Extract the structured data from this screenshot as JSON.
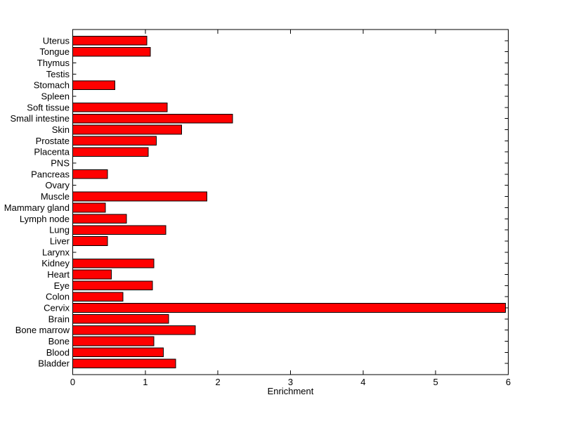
{
  "chart_data": {
    "type": "bar",
    "orientation": "horizontal",
    "title": "",
    "xlabel": "Enrichment",
    "ylabel": "",
    "xlim": [
      0,
      6
    ],
    "x_ticks": [
      0,
      1,
      2,
      3,
      4,
      5,
      6
    ],
    "grid": false,
    "legend": null,
    "bar_color": "#ff0000",
    "bar_edge_color": "#000000",
    "axis_color": "#000000",
    "background_color": "#ffffff",
    "categories_top_to_bottom": [
      "Uterus",
      "Tongue",
      "Thymus",
      "Testis",
      "Stomach",
      "Spleen",
      "Soft tissue",
      "Small intestine",
      "Skin",
      "Prostate",
      "Placenta",
      "PNS",
      "Pancreas",
      "Ovary",
      "Muscle",
      "Mammary gland",
      "Lymph node",
      "Lung",
      "Liver",
      "Larynx",
      "Kidney",
      "Heart",
      "Eye",
      "Colon",
      "Cervix",
      "Brain",
      "Bone marrow",
      "Bone",
      "Blood",
      "Bladder"
    ],
    "values": [
      1.02,
      1.07,
      0,
      0,
      0.58,
      0,
      1.3,
      2.2,
      1.5,
      1.15,
      1.04,
      0,
      0.48,
      0,
      1.85,
      0.45,
      0.74,
      1.28,
      0.48,
      0,
      1.12,
      0.53,
      1.1,
      0.69,
      5.96,
      1.32,
      1.69,
      1.12,
      1.25,
      1.42
    ]
  }
}
